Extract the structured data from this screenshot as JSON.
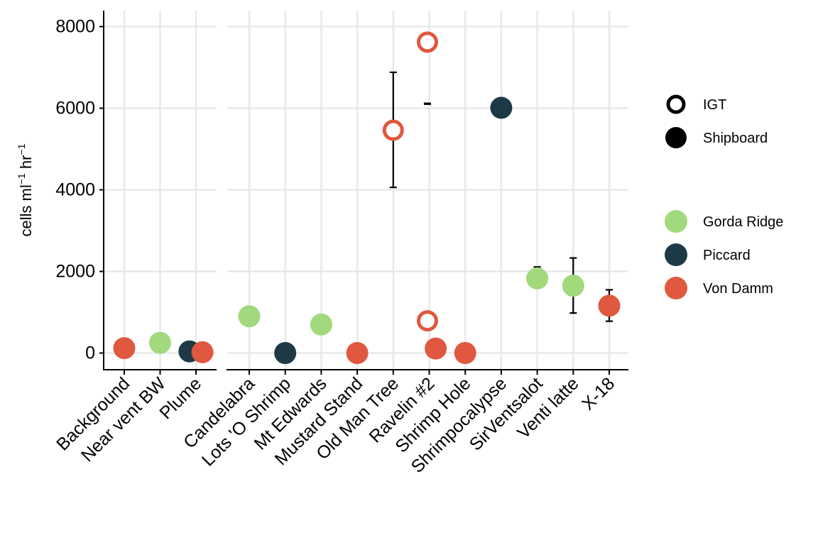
{
  "chart_data": {
    "type": "scatter",
    "ylabel": "cells ml",
    "ylabel_sup1": "−1",
    "ylabel_mid": " hr",
    "ylabel_sup2": "−1",
    "ylim": [
      -350,
      8400
    ],
    "yticks": [
      0,
      2000,
      4000,
      6000,
      8000
    ],
    "grid": true,
    "panels": [
      {
        "categories": [
          "Background",
          "Near vent BW",
          "Plume"
        ]
      },
      {
        "categories": [
          "Candelabra",
          "Lots 'O Shrimp",
          "Mt Edwards",
          "Mustard Stand",
          "Old Man Tree",
          "Ravelin #2",
          "Shrimp Hole",
          "Shrimpocalypse",
          "SirVentsalot",
          "Venti latte",
          "X-18"
        ]
      }
    ],
    "points": [
      {
        "panel": 0,
        "category": "Background",
        "y": 120,
        "site": "Von Damm",
        "method": "Shipboard",
        "dodge": 0
      },
      {
        "panel": 0,
        "category": "Near vent BW",
        "y": 250,
        "site": "Gorda Ridge",
        "method": "Shipboard",
        "dodge": 0
      },
      {
        "panel": 0,
        "category": "Plume",
        "y": 40,
        "site": "Piccard",
        "method": "Shipboard",
        "dodge": -0.18
      },
      {
        "panel": 0,
        "category": "Plume",
        "y": 20,
        "site": "Von Damm",
        "method": "Shipboard",
        "dodge": 0.18
      },
      {
        "panel": 1,
        "category": "Candelabra",
        "y": 900,
        "site": "Gorda Ridge",
        "method": "Shipboard",
        "dodge": 0
      },
      {
        "panel": 1,
        "category": "Lots 'O Shrimp",
        "y": 0,
        "site": "Piccard",
        "method": "Shipboard",
        "dodge": 0
      },
      {
        "panel": 1,
        "category": "Mt Edwards",
        "y": 700,
        "site": "Gorda Ridge",
        "method": "Shipboard",
        "dodge": 0
      },
      {
        "panel": 1,
        "category": "Mustard Stand",
        "y": 0,
        "site": "Von Damm",
        "method": "Shipboard",
        "dodge": 0
      },
      {
        "panel": 1,
        "category": "Old Man Tree",
        "y": 5460,
        "site": "Von Damm",
        "method": "IGT",
        "dodge": 0,
        "err": [
          4060,
          6880
        ]
      },
      {
        "panel": 1,
        "category": "Ravelin #2",
        "y": 7620,
        "site": "Von Damm",
        "method": "IGT",
        "dodge": -0.05,
        "err": [
          6100,
          6120
        ]
      },
      {
        "panel": 1,
        "category": "Ravelin #2",
        "y": 790,
        "site": "Von Damm",
        "method": "IGT",
        "dodge": -0.05,
        "err": [
          680,
          900
        ]
      },
      {
        "panel": 1,
        "category": "Ravelin #2",
        "y": 110,
        "site": "Von Damm",
        "method": "Shipboard",
        "dodge": 0.18
      },
      {
        "panel": 1,
        "category": "Shrimp Hole",
        "y": 0,
        "site": "Von Damm",
        "method": "Shipboard",
        "dodge": 0
      },
      {
        "panel": 1,
        "category": "Shrimpocalypse",
        "y": 6010,
        "site": "Piccard",
        "method": "Shipboard",
        "dodge": 0
      },
      {
        "panel": 1,
        "category": "SirVentsalot",
        "y": 1830,
        "site": "Gorda Ridge",
        "method": "Shipboard",
        "dodge": 0,
        "err": [
          1830,
          2110
        ]
      },
      {
        "panel": 1,
        "category": "Venti latte",
        "y": 1650,
        "site": "Gorda Ridge",
        "method": "Shipboard",
        "dodge": 0,
        "err": [
          980,
          2330
        ]
      },
      {
        "panel": 1,
        "category": "X-18",
        "y": 1160,
        "site": "Von Damm",
        "method": "Shipboard",
        "dodge": 0,
        "err": [
          780,
          1550
        ]
      }
    ],
    "legend": {
      "position": "right",
      "method": [
        {
          "label": "IGT",
          "style": "hollow"
        },
        {
          "label": "Shipboard",
          "style": "filled"
        }
      ],
      "site": [
        {
          "label": "Gorda Ridge",
          "color": "#a1d97c"
        },
        {
          "label": "Piccard",
          "color": "#1d3946"
        },
        {
          "label": "Von Damm",
          "color": "#e0583f"
        }
      ]
    }
  }
}
